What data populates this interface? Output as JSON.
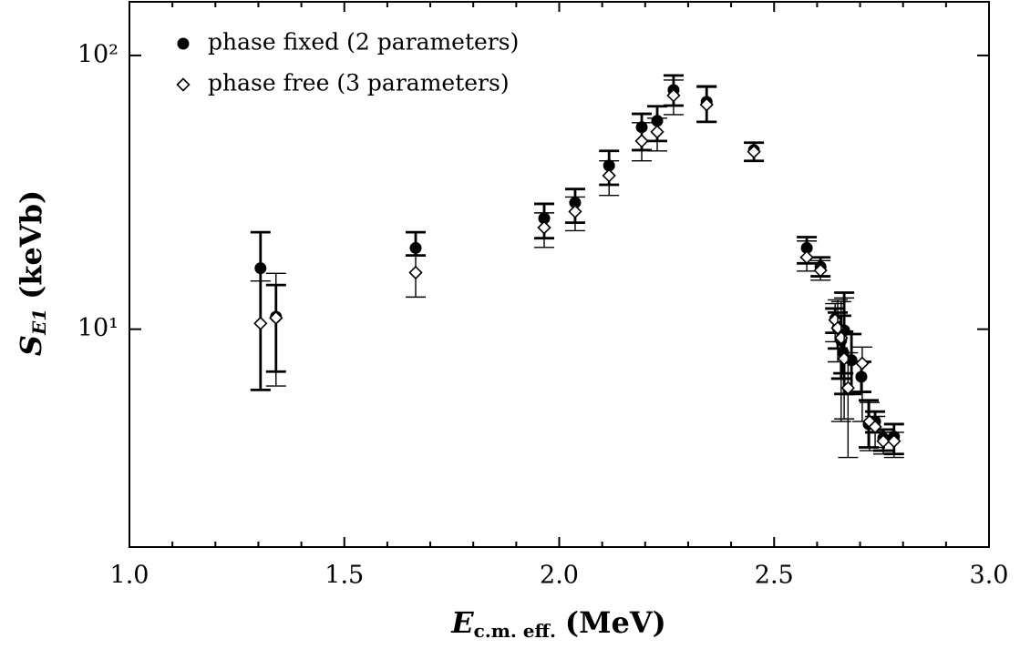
{
  "chart_data": {
    "type": "scatter",
    "xlabel": {
      "symbol": "E",
      "subscript": "c.m. eff.",
      "unit": "(MeV)"
    },
    "ylabel": {
      "symbol": "S",
      "subscript": "E1",
      "unit": "(keVb)"
    },
    "xlim": [
      1.0,
      3.0
    ],
    "xticks": [
      {
        "value": 1.0,
        "label": "1.0"
      },
      1.5,
      {
        "value": 2.0,
        "label": "2.0"
      },
      2.5,
      {
        "value": 3.0,
        "label": "3.0"
      }
    ],
    "xminorticks": [
      1.1,
      1.2,
      1.3,
      1.4,
      1.6,
      1.7,
      1.8,
      1.9,
      2.1,
      2.2,
      2.3,
      2.4,
      2.6,
      2.7,
      2.8,
      2.9
    ],
    "ylim": [
      1.6,
      157
    ],
    "yscale": "log",
    "yticks": [
      {
        "value": 10,
        "label": "10¹"
      },
      {
        "value": 100,
        "label": "10²"
      }
    ],
    "legend": "upper left",
    "series": [
      {
        "name": "phase fixed (2 parameters)",
        "marker": "circle",
        "color": "#000000",
        "x": [
          1.305,
          1.341,
          1.666,
          1.965,
          2.037,
          2.116,
          2.192,
          2.228,
          2.266,
          2.343,
          2.453,
          2.576,
          2.608,
          2.642,
          2.648,
          2.656,
          2.661,
          2.663,
          2.68,
          2.703,
          2.72,
          2.735,
          2.754,
          2.779
        ],
        "values": [
          16.7,
          11.1,
          19.8,
          25.4,
          29.0,
          39.6,
          54.7,
          57.7,
          74.8,
          67.7,
          45.1,
          19.8,
          16.9,
          10.9,
          10.1,
          9.1,
          8.2,
          9.9,
          7.7,
          6.7,
          4.5,
          4.6,
          4.0,
          4.05
        ],
        "lows": [
          6.0,
          7.0,
          18.6,
          21.5,
          24.5,
          33.7,
          45.1,
          48.7,
          65.6,
          57.2,
          41.2,
          17.4,
          15.6,
          9.7,
          8.5,
          6.6,
          6.9,
          5.8,
          5.8,
          5.9,
          3.7,
          4.2,
          3.6,
          3.5
        ],
        "highs": [
          22.6,
          14.5,
          22.6,
          28.7,
          32.5,
          44.8,
          61.2,
          65.2,
          84.5,
          77.1,
          48.0,
          21.7,
          18.3,
          11.9,
          11.5,
          11.2,
          9.8,
          13.6,
          9.6,
          7.6,
          5.5,
          5.0,
          4.3,
          4.5
        ]
      },
      {
        "name": "phase free (3 parameters)",
        "marker": "diamond",
        "color": "#000000",
        "x": [
          1.305,
          1.341,
          1.666,
          1.965,
          2.037,
          2.116,
          2.192,
          2.228,
          2.266,
          2.343,
          2.453,
          2.576,
          2.608,
          2.642,
          2.648,
          2.656,
          2.663,
          2.672,
          2.705,
          2.722,
          2.735,
          2.754,
          2.779
        ],
        "values": [
          10.5,
          11.0,
          16.1,
          23.5,
          26.9,
          36.4,
          48.7,
          52.6,
          71.4,
          66.1,
          44.5,
          18.3,
          16.4,
          10.8,
          10.1,
          9.3,
          7.8,
          6.1,
          7.5,
          4.6,
          4.4,
          3.9,
          3.9
        ],
        "lows": [
          6.0,
          6.2,
          13.1,
          19.9,
          22.9,
          30.8,
          41.2,
          44.8,
          60.8,
          57.5,
          41.2,
          16.3,
          15.1,
          9.0,
          7.6,
          4.6,
          4.7,
          3.4,
          4.6,
          3.6,
          3.7,
          3.5,
          3.4
        ],
        "highs": [
          15.0,
          16.0,
          18.6,
          26.6,
          30.4,
          41.2,
          56.8,
          59.0,
          81.3,
          76.5,
          48.0,
          21.0,
          17.8,
          12.4,
          12.8,
          12.6,
          13.0,
          8.2,
          8.6,
          5.4,
          4.8,
          4.2,
          4.2
        ]
      }
    ]
  }
}
